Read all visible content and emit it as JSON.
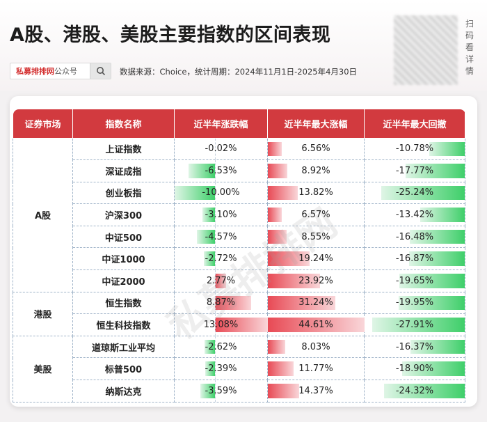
{
  "header": {
    "title": "A股、港股、美股主要指数的区间表现",
    "search_brand": "私募排排网",
    "search_suffix": "公众号",
    "source": "数据来源：Choice，统计周期：2024年11月1日-2025年4月30日",
    "scan_chars": [
      "扫",
      "码",
      "看",
      "详",
      "情"
    ],
    "watermark": "私募排排网"
  },
  "colors": {
    "header_red": "#d23a3f",
    "positive_bar": "#e84a55",
    "negative_bar": "#3fcf6a"
  },
  "table": {
    "columns": [
      "证券市场",
      "指数名称",
      "近半年涨跌幅",
      "近半年最大涨幅",
      "近半年最大回撤"
    ],
    "groups": [
      {
        "market": "A股",
        "rows": [
          {
            "name": "上证指数",
            "change": "-0.02%",
            "max_gain": "6.56%",
            "max_drawdown": "-10.78%"
          },
          {
            "name": "深证成指",
            "change": "-6.53%",
            "max_gain": "8.92%",
            "max_drawdown": "-17.77%"
          },
          {
            "name": "创业板指",
            "change": "-10.00%",
            "max_gain": "13.82%",
            "max_drawdown": "-25.24%"
          },
          {
            "name": "沪深300",
            "change": "-3.10%",
            "max_gain": "6.57%",
            "max_drawdown": "-13.42%"
          },
          {
            "name": "中证500",
            "change": "-4.57%",
            "max_gain": "8.55%",
            "max_drawdown": "-16.48%"
          },
          {
            "name": "中证1000",
            "change": "-2.72%",
            "max_gain": "19.24%",
            "max_drawdown": "-16.87%"
          },
          {
            "name": "中证2000",
            "change": "2.77%",
            "max_gain": "23.92%",
            "max_drawdown": "-19.65%"
          }
        ]
      },
      {
        "market": "港股",
        "rows": [
          {
            "name": "恒生指数",
            "change": "8.87%",
            "max_gain": "31.24%",
            "max_drawdown": "-19.95%"
          },
          {
            "name": "恒生科技指数",
            "change": "13.08%",
            "max_gain": "44.61%",
            "max_drawdown": "-27.91%"
          }
        ]
      },
      {
        "market": "美股",
        "rows": [
          {
            "name": "道琼斯工业平均",
            "change": "-2.62%",
            "max_gain": "8.03%",
            "max_drawdown": "-16.37%"
          },
          {
            "name": "标普500",
            "change": "-2.39%",
            "max_gain": "11.77%",
            "max_drawdown": "-18.90%"
          },
          {
            "name": "纳斯达克",
            "change": "-3.59%",
            "max_gain": "14.37%",
            "max_drawdown": "-24.32%"
          }
        ]
      }
    ]
  }
}
